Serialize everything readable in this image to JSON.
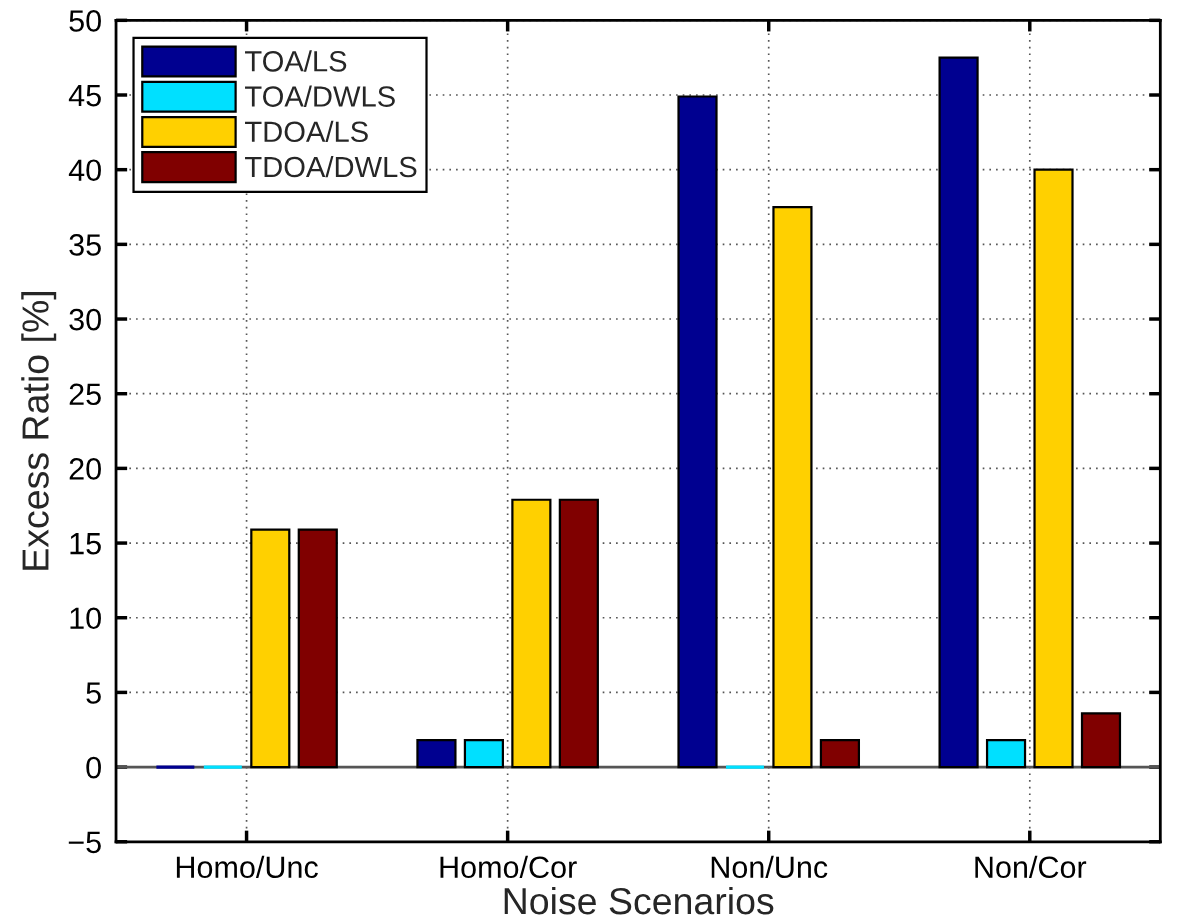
{
  "chart_data": {
    "type": "bar",
    "xlabel": "Noise Scenarios",
    "ylabel": "Excess Ratio [%]",
    "categories": [
      "Homo/Unc",
      "Homo/Cor",
      "Non/Unc",
      "Non/Cor"
    ],
    "series": [
      {
        "name": "TOA/LS",
        "color": "#000090",
        "values": [
          0,
          1.8,
          44.9,
          47.5
        ]
      },
      {
        "name": "TOA/DWLS",
        "color": "#00e0ff",
        "values": [
          0,
          1.8,
          0,
          1.8
        ]
      },
      {
        "name": "TDOA/LS",
        "color": "#ffd000",
        "values": [
          15.9,
          17.9,
          37.5,
          40.0
        ]
      },
      {
        "name": "TDOA/DWLS",
        "color": "#800000",
        "values": [
          15.9,
          17.9,
          1.8,
          3.6
        ]
      }
    ],
    "ylim": [
      -5,
      50
    ],
    "yticks": [
      {
        "value": -5,
        "label": "−5"
      },
      0,
      5,
      10,
      15,
      20,
      25,
      30,
      35,
      40,
      45,
      50
    ],
    "grid": true,
    "legend": "top left",
    "ref_lines": [
      {
        "axis": "y",
        "value": 0,
        "color": "#555555"
      }
    ]
  }
}
